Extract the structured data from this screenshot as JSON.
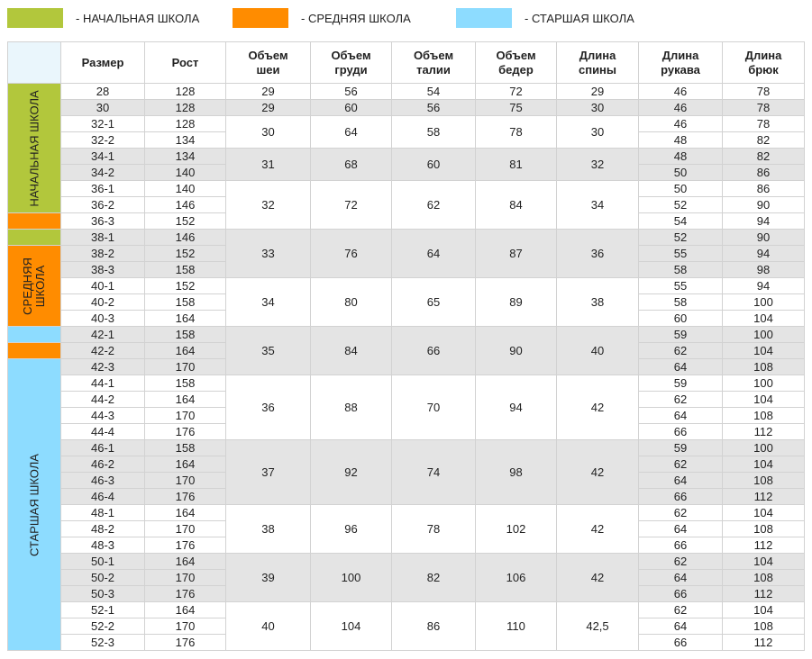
{
  "legend": [
    {
      "label": "- НАЧАЛЬНАЯ ШКОЛА",
      "color": "#b2c73c"
    },
    {
      "label": "- СРЕДНЯЯ ШКОЛА",
      "color": "#ff8c00"
    },
    {
      "label": "- СТАРШАЯ ШКОЛА",
      "color": "#8ddcff"
    }
  ],
  "headers": {
    "size": "Размер",
    "height": "Рост",
    "neck": [
      "Объем",
      "шеи"
    ],
    "chest": [
      "Объем",
      "груди"
    ],
    "waist": [
      "Объем",
      "талии"
    ],
    "hips": [
      "Объем",
      "бедер"
    ],
    "back": [
      "Длина",
      "спины"
    ],
    "sleeve": [
      "Длина",
      "рукава"
    ],
    "trousers": [
      "Длина",
      "брюк"
    ]
  },
  "school_labels": {
    "primary": "НАЧАЛЬНАЯ ШКОЛА",
    "middle": [
      "СРЕДНЯЯ",
      "ШКОЛА"
    ],
    "senior": "СТАРШАЯ ШКОЛА"
  },
  "colors": {
    "primary": "#b2c73c",
    "middle": "#ff8c00",
    "senior": "#8ddcff",
    "shade": "#e4e4e4"
  },
  "groups": [
    {
      "neck": "29",
      "chest": "56",
      "waist": "54",
      "hips": "72",
      "back": "29",
      "rows": [
        {
          "size": "28",
          "height": "128",
          "sleeve": "46",
          "trousers": "78"
        }
      ]
    },
    {
      "neck": "29",
      "chest": "60",
      "waist": "56",
      "hips": "75",
      "back": "30",
      "rows": [
        {
          "size": "30",
          "height": "128",
          "sleeve": "46",
          "trousers": "78"
        }
      ]
    },
    {
      "neck": "30",
      "chest": "64",
      "waist": "58",
      "hips": "78",
      "back": "30",
      "rows": [
        {
          "size": "32-1",
          "height": "128",
          "sleeve": "46",
          "trousers": "78"
        },
        {
          "size": "32-2",
          "height": "134",
          "sleeve": "48",
          "trousers": "82"
        }
      ]
    },
    {
      "neck": "31",
      "chest": "68",
      "waist": "60",
      "hips": "81",
      "back": "32",
      "rows": [
        {
          "size": "34-1",
          "height": "134",
          "sleeve": "48",
          "trousers": "82"
        },
        {
          "size": "34-2",
          "height": "140",
          "sleeve": "50",
          "trousers": "86"
        }
      ]
    },
    {
      "neck": "32",
      "chest": "72",
      "waist": "62",
      "hips": "84",
      "back": "34",
      "rows": [
        {
          "size": "36-1",
          "height": "140",
          "sleeve": "50",
          "trousers": "86"
        },
        {
          "size": "36-2",
          "height": "146",
          "sleeve": "52",
          "trousers": "90"
        },
        {
          "size": "36-3",
          "height": "152",
          "sleeve": "54",
          "trousers": "94"
        }
      ]
    },
    {
      "neck": "33",
      "chest": "76",
      "waist": "64",
      "hips": "87",
      "back": "36",
      "rows": [
        {
          "size": "38-1",
          "height": "146",
          "sleeve": "52",
          "trousers": "90"
        },
        {
          "size": "38-2",
          "height": "152",
          "sleeve": "55",
          "trousers": "94"
        },
        {
          "size": "38-3",
          "height": "158",
          "sleeve": "58",
          "trousers": "98"
        }
      ]
    },
    {
      "neck": "34",
      "chest": "80",
      "waist": "65",
      "hips": "89",
      "back": "38",
      "rows": [
        {
          "size": "40-1",
          "height": "152",
          "sleeve": "55",
          "trousers": "94"
        },
        {
          "size": "40-2",
          "height": "158",
          "sleeve": "58",
          "trousers": "100"
        },
        {
          "size": "40-3",
          "height": "164",
          "sleeve": "60",
          "trousers": "104"
        }
      ]
    },
    {
      "neck": "35",
      "chest": "84",
      "waist": "66",
      "hips": "90",
      "back": "40",
      "rows": [
        {
          "size": "42-1",
          "height": "158",
          "sleeve": "59",
          "trousers": "100"
        },
        {
          "size": "42-2",
          "height": "164",
          "sleeve": "62",
          "trousers": "104"
        },
        {
          "size": "42-3",
          "height": "170",
          "sleeve": "64",
          "trousers": "108"
        }
      ]
    },
    {
      "neck": "36",
      "chest": "88",
      "waist": "70",
      "hips": "94",
      "back": "42",
      "rows": [
        {
          "size": "44-1",
          "height": "158",
          "sleeve": "59",
          "trousers": "100"
        },
        {
          "size": "44-2",
          "height": "164",
          "sleeve": "62",
          "trousers": "104"
        },
        {
          "size": "44-3",
          "height": "170",
          "sleeve": "64",
          "trousers": "108"
        },
        {
          "size": "44-4",
          "height": "176",
          "sleeve": "66",
          "trousers": "112"
        }
      ]
    },
    {
      "neck": "37",
      "chest": "92",
      "waist": "74",
      "hips": "98",
      "back": "42",
      "rows": [
        {
          "size": "46-1",
          "height": "158",
          "sleeve": "59",
          "trousers": "100"
        },
        {
          "size": "46-2",
          "height": "164",
          "sleeve": "62",
          "trousers": "104"
        },
        {
          "size": "46-3",
          "height": "170",
          "sleeve": "64",
          "trousers": "108"
        },
        {
          "size": "46-4",
          "height": "176",
          "sleeve": "66",
          "trousers": "112"
        }
      ]
    },
    {
      "neck": "38",
      "chest": "96",
      "waist": "78",
      "hips": "102",
      "back": "42",
      "rows": [
        {
          "size": "48-1",
          "height": "164",
          "sleeve": "62",
          "trousers": "104"
        },
        {
          "size": "48-2",
          "height": "170",
          "sleeve": "64",
          "trousers": "108"
        },
        {
          "size": "48-3",
          "height": "176",
          "sleeve": "66",
          "trousers": "112"
        }
      ]
    },
    {
      "neck": "39",
      "chest": "100",
      "waist": "82",
      "hips": "106",
      "back": "42",
      "rows": [
        {
          "size": "50-1",
          "height": "164",
          "sleeve": "62",
          "trousers": "104"
        },
        {
          "size": "50-2",
          "height": "170",
          "sleeve": "64",
          "trousers": "108"
        },
        {
          "size": "50-3",
          "height": "176",
          "sleeve": "66",
          "trousers": "112"
        }
      ]
    },
    {
      "neck": "40",
      "chest": "104",
      "waist": "86",
      "hips": "110",
      "back": "42,5",
      "rows": [
        {
          "size": "52-1",
          "height": "164",
          "sleeve": "62",
          "trousers": "104"
        },
        {
          "size": "52-2",
          "height": "170",
          "sleeve": "64",
          "trousers": "108"
        },
        {
          "size": "52-3",
          "height": "176",
          "sleeve": "66",
          "trousers": "112"
        }
      ]
    }
  ]
}
